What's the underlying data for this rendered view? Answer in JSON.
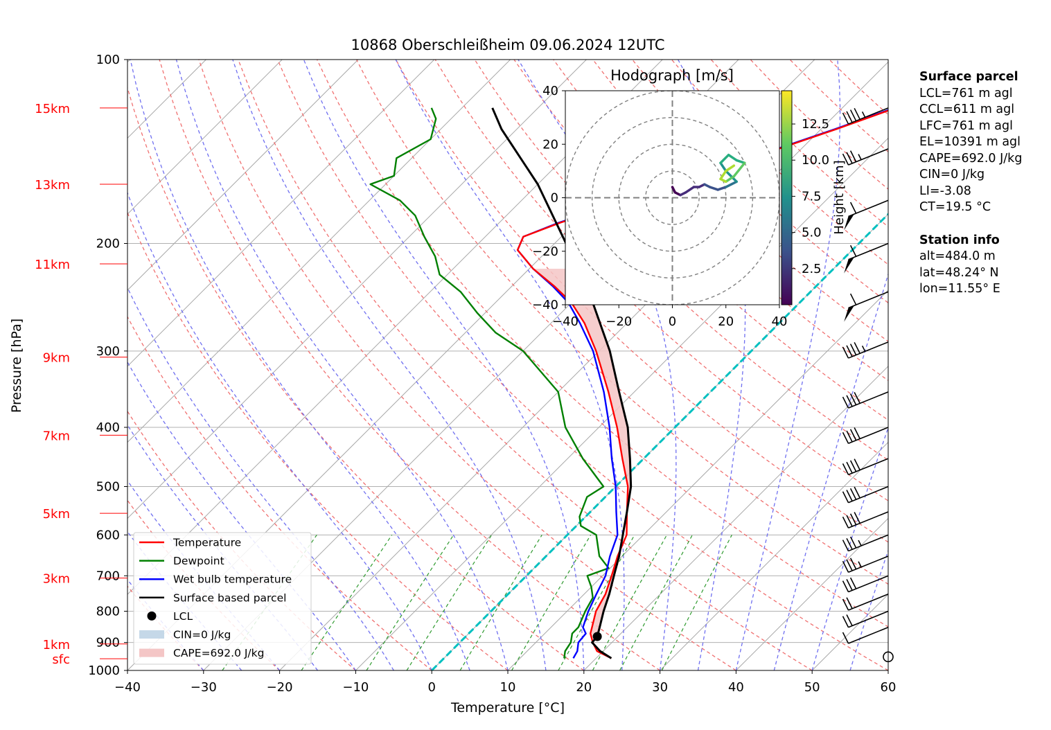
{
  "chart_data": {
    "type": "line",
    "title": "10868 Oberschleißheim 09.06.2024 12UTC",
    "xlabel": "Temperature [°C]",
    "ylabel": "Pressure [hPa]",
    "xlim": [
      -40,
      60
    ],
    "ylim": [
      1000,
      100
    ],
    "y_scale": "log",
    "x_ticks": [
      "−40",
      "−30",
      "−20",
      "−10",
      "0",
      "10",
      "20",
      "30",
      "40",
      "50",
      "60"
    ],
    "y_ticks": [
      {
        "p": 100,
        "label": "100"
      },
      {
        "p": 200,
        "label": "200"
      },
      {
        "p": 300,
        "label": "300"
      },
      {
        "p": 400,
        "label": "400"
      },
      {
        "p": 500,
        "label": "500"
      },
      {
        "p": 600,
        "label": "600"
      },
      {
        "p": 700,
        "label": "700"
      },
      {
        "p": 800,
        "label": "800"
      },
      {
        "p": 900,
        "label": "900"
      },
      {
        "p": 1000,
        "label": "1000"
      }
    ],
    "height_labels": [
      {
        "p": 120,
        "label": "15km"
      },
      {
        "p": 160,
        "label": "13km"
      },
      {
        "p": 216,
        "label": "11km"
      },
      {
        "p": 307,
        "label": "9km"
      },
      {
        "p": 412,
        "label": "7km"
      },
      {
        "p": 553,
        "label": "5km"
      },
      {
        "p": 706,
        "label": "3km"
      },
      {
        "p": 905,
        "label": "1km"
      },
      {
        "p": 957,
        "label": "sfc"
      }
    ],
    "grid": true,
    "legend_position": "lower-left",
    "legend": [
      {
        "label": "Temperature",
        "color": "#ff0000",
        "kind": "line"
      },
      {
        "label": "Dewpoint",
        "color": "#008000",
        "kind": "line"
      },
      {
        "label": "Wet bulb temperature",
        "color": "#0000ff",
        "kind": "line"
      },
      {
        "label": "Surface based parcel",
        "color": "#000000",
        "kind": "line"
      },
      {
        "label": "LCL",
        "color": "#000000",
        "kind": "dot"
      },
      {
        "label": "CIN=0 J/kg",
        "color": "#c5d8e8",
        "kind": "patch"
      },
      {
        "label": "CAPE=692.0 J/kg",
        "color": "#f4c6c6",
        "kind": "patch"
      }
    ],
    "series": [
      {
        "name": "Temperature",
        "color": "#ff0000",
        "points": [
          [
            955,
            22.0
          ],
          [
            930,
            19.2
          ],
          [
            900,
            17.5
          ],
          [
            870,
            16.0
          ],
          [
            850,
            15.4
          ],
          [
            800,
            13.8
          ],
          [
            750,
            12.8
          ],
          [
            700,
            11.2
          ],
          [
            650,
            9.4
          ],
          [
            600,
            7.8
          ],
          [
            550,
            4.8
          ],
          [
            500,
            1.6
          ],
          [
            450,
            -2.8
          ],
          [
            400,
            -7.6
          ],
          [
            350,
            -13.4
          ],
          [
            300,
            -20.4
          ],
          [
            270,
            -25.6
          ],
          [
            250,
            -30.0
          ],
          [
            235,
            -34.4
          ],
          [
            220,
            -39.5
          ],
          [
            205,
            -44.0
          ],
          [
            195,
            -45.0
          ],
          [
            185,
            -42.0
          ],
          [
            175,
            -38.0
          ],
          [
            165,
            -33.0
          ],
          [
            150,
            -29.0
          ],
          [
            140,
            -23.0
          ],
          [
            130,
            -18.0
          ],
          [
            120,
            -13.0
          ]
        ]
      },
      {
        "name": "Wet bulb temperature",
        "color": "#0000ff",
        "points": [
          [
            955,
            17.0
          ],
          [
            930,
            16.6
          ],
          [
            900,
            15.6
          ],
          [
            870,
            15.4
          ],
          [
            850,
            14.2
          ],
          [
            800,
            12.8
          ],
          [
            750,
            11.6
          ],
          [
            700,
            10.4
          ],
          [
            650,
            8.4
          ],
          [
            600,
            6.6
          ],
          [
            550,
            3.4
          ],
          [
            500,
            0.0
          ],
          [
            450,
            -4.2
          ],
          [
            400,
            -8.6
          ],
          [
            350,
            -14.0
          ],
          [
            300,
            -20.8
          ],
          [
            270,
            -26.2
          ],
          [
            250,
            -30.4
          ],
          [
            235,
            -34.6
          ],
          [
            220,
            -39.5
          ],
          [
            205,
            -44.0
          ],
          [
            195,
            -45.0
          ],
          [
            185,
            -42.2
          ],
          [
            175,
            -38.2
          ],
          [
            165,
            -33.2
          ],
          [
            150,
            -29.2
          ],
          [
            140,
            -23.2
          ],
          [
            130,
            -18.2
          ],
          [
            120,
            -13.2
          ]
        ]
      },
      {
        "name": "Dewpoint",
        "color": "#008000",
        "points": [
          [
            955,
            15.8
          ],
          [
            930,
            15.0
          ],
          [
            900,
            14.6
          ],
          [
            870,
            13.6
          ],
          [
            850,
            13.6
          ],
          [
            800,
            12.4
          ],
          [
            760,
            11.6
          ],
          [
            730,
            10.0
          ],
          [
            700,
            8.0
          ],
          [
            680,
            9.8
          ],
          [
            650,
            7.0
          ],
          [
            600,
            3.8
          ],
          [
            580,
            0.6
          ],
          [
            560,
            -0.8
          ],
          [
            520,
            -2.4
          ],
          [
            500,
            -1.6
          ],
          [
            450,
            -8.0
          ],
          [
            400,
            -14.4
          ],
          [
            350,
            -20.0
          ],
          [
            300,
            -30.0
          ],
          [
            280,
            -36.0
          ],
          [
            260,
            -41.0
          ],
          [
            240,
            -46.0
          ],
          [
            225,
            -51.0
          ],
          [
            210,
            -54.0
          ],
          [
            195,
            -58.0
          ],
          [
            180,
            -62.0
          ],
          [
            170,
            -66.0
          ],
          [
            160,
            -72.0
          ],
          [
            155,
            -70.0
          ],
          [
            145,
            -72.0
          ],
          [
            135,
            -70.0
          ],
          [
            125,
            -72.0
          ],
          [
            120,
            -74.0
          ]
        ]
      },
      {
        "name": "Surface based parcel",
        "color": "#000000",
        "points": [
          [
            955,
            22.0
          ],
          [
            930,
            19.6
          ],
          [
            900,
            17.4
          ],
          [
            880,
            17.3
          ],
          [
            850,
            16.4
          ],
          [
            800,
            14.8
          ],
          [
            750,
            13.3
          ],
          [
            700,
            11.5
          ],
          [
            650,
            9.6
          ],
          [
            600,
            7.3
          ],
          [
            550,
            4.8
          ],
          [
            500,
            2.0
          ],
          [
            450,
            -1.8
          ],
          [
            400,
            -6.2
          ],
          [
            350,
            -12.0
          ],
          [
            300,
            -18.6
          ],
          [
            250,
            -27.2
          ],
          [
            200,
            -38.5
          ],
          [
            160,
            -50.0
          ],
          [
            130,
            -62.0
          ],
          [
            120,
            -66.0
          ]
        ]
      }
    ],
    "lcl": {
      "p": 880,
      "t": 17.3
    },
    "cape_region": {
      "top_p": 220,
      "bottom_p": 880
    },
    "cyan_isotherm_c": 0,
    "wind_barbs": {
      "levels_hpa": [
        120,
        140,
        170,
        200,
        240,
        290,
        350,
        400,
        450,
        500,
        550,
        600,
        650,
        700,
        750,
        800,
        850,
        950
      ],
      "speeds_kt": [
        45,
        35,
        60,
        60,
        60,
        45,
        40,
        40,
        40,
        40,
        40,
        35,
        35,
        30,
        20,
        20,
        10,
        0
      ]
    },
    "hodograph": {
      "title": "Hodograph [m/s]",
      "xlim": [
        -40,
        40
      ],
      "ylim": [
        -40,
        40
      ],
      "x_ticks": [
        "−40",
        "−20",
        "0",
        "20",
        "40"
      ],
      "y_ticks": [
        "40",
        "20",
        "0",
        "−20",
        "−40"
      ],
      "rings_ms": [
        10,
        20,
        30,
        40
      ],
      "colorbar_label": "Height [km]",
      "colorbar_ticks": [
        "2.5",
        "5.0",
        "7.5",
        "10.0",
        "12.5"
      ],
      "trace": [
        [
          0,
          4,
          0
        ],
        [
          1,
          2,
          0.5
        ],
        [
          3,
          1,
          1
        ],
        [
          5,
          2,
          1.5
        ],
        [
          8,
          4,
          2
        ],
        [
          10,
          4,
          2.5
        ],
        [
          12,
          5,
          3
        ],
        [
          14,
          4,
          3.5
        ],
        [
          17,
          3,
          4
        ],
        [
          20,
          4,
          5
        ],
        [
          22,
          5,
          6
        ],
        [
          24,
          6,
          7
        ],
        [
          20,
          10,
          8
        ],
        [
          18,
          13,
          8.5
        ],
        [
          21,
          16,
          9
        ],
        [
          24,
          14,
          10
        ],
        [
          27,
          13,
          11
        ],
        [
          23,
          8,
          12
        ],
        [
          20,
          6,
          12.5
        ],
        [
          18,
          7,
          13
        ],
        [
          20,
          10,
          14
        ],
        [
          23,
          12,
          14.5
        ]
      ]
    }
  },
  "side_panel": {
    "surface_title": "Surface parcel",
    "surface_lines": [
      "LCL=761 m agl",
      "CCL=611 m agl",
      "LFC=761 m agl",
      "EL=10391 m agl",
      "CAPE=692.0 J/kg",
      "CIN=0 J/kg",
      "LI=-3.08",
      "CT=19.5 °C"
    ],
    "station_title": "Station info",
    "station_lines": [
      "alt=484.0 m",
      "lat=48.24° N",
      "lon=11.55° E"
    ]
  }
}
